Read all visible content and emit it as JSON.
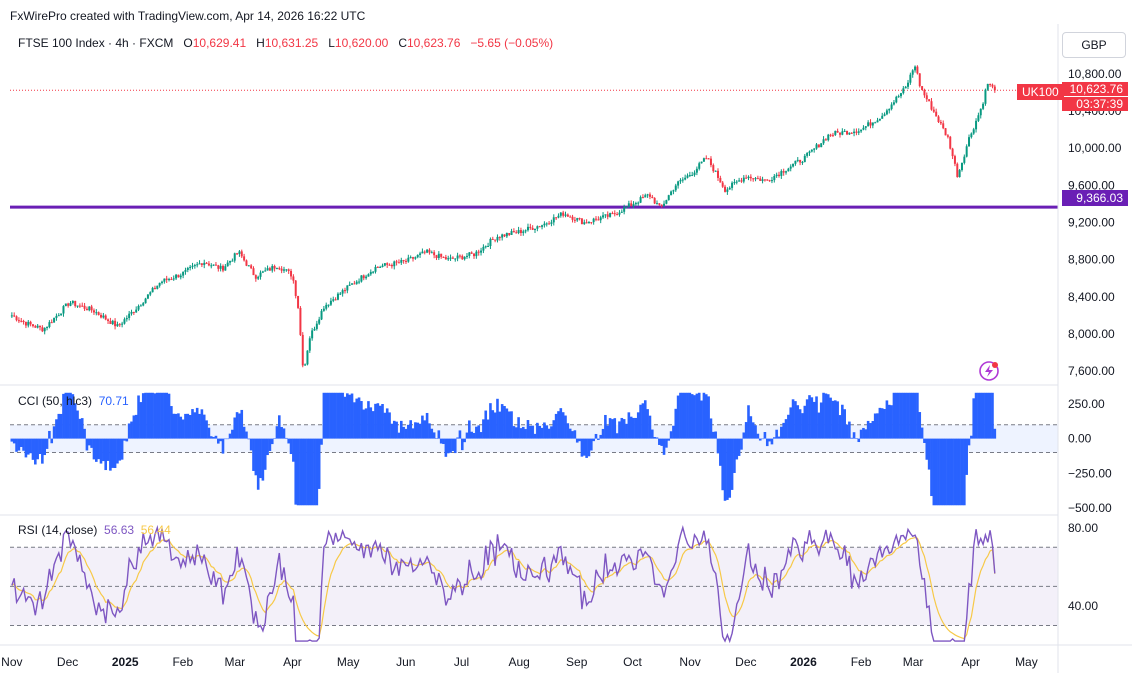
{
  "credit": "FxWirePro created with TradingView.com, Apr 14, 2026 16:22 UTC",
  "currency_button": "GBP",
  "legend": {
    "symbol": "FTSE 100 Index · 4h · FXCM",
    "o_label": "O",
    "o": "10,629.41",
    "h_label": "H",
    "h": "10,631.25",
    "l_label": "L",
    "l": "10,620.00",
    "c_label": "C",
    "c": "10,623.76",
    "change": "−5.65 (−0.05%)"
  },
  "price_badge": {
    "ticker": "UK100",
    "price": "10,623.76",
    "countdown": "03:37:39"
  },
  "level_badge": "9,366.03",
  "cci_legend": {
    "name": "CCI (50, hlc3)",
    "value": "70.71"
  },
  "rsi_legend": {
    "name": "RSI (14, close)",
    "value": "56.63",
    "ma_value": "56.44"
  },
  "colors": {
    "up": "#089981",
    "down": "#f23645",
    "level": "#6a1fb5",
    "cci": "#2962ff",
    "rsi": "#7e57c2",
    "rsi_ma": "#f7c948"
  },
  "chart_data": [
    {
      "type": "candlestick",
      "title": "FTSE 100 Index · 4h · FXCM",
      "x_ticks": [
        "Nov",
        "Dec",
        "2025",
        "Feb",
        "Mar",
        "Apr",
        "May",
        "Jun",
        "Jul",
        "Aug",
        "Sep",
        "Oct",
        "Nov",
        "Dec",
        "2026",
        "Feb",
        "Mar",
        "Apr",
        "May"
      ],
      "y_ticks": [
        7600,
        8000,
        8400,
        8800,
        9200,
        9600,
        10000,
        10400,
        10800
      ],
      "y_tick_labels": [
        "7,600.00",
        "8,000.00",
        "8,400.00",
        "8,800.00",
        "9,200.00",
        "9,600.00",
        "10,000.00",
        "10,400.00",
        "10,800.00"
      ],
      "ylim": [
        7450,
        10950
      ],
      "horizontal_line": 9366.03,
      "last_price": 10623.76,
      "price_path": [
        [
          "2024-11-01",
          8200
        ],
        [
          "2024-11-08",
          8120
        ],
        [
          "2024-11-18",
          8050
        ],
        [
          "2024-12-02",
          8340
        ],
        [
          "2024-12-15",
          8250
        ],
        [
          "2024-12-28",
          8080
        ],
        [
          "2025-01-08",
          8300
        ],
        [
          "2025-01-20",
          8560
        ],
        [
          "2025-02-01",
          8650
        ],
        [
          "2025-02-12",
          8780
        ],
        [
          "2025-02-22",
          8700
        ],
        [
          "2025-03-03",
          8880
        ],
        [
          "2025-03-12",
          8620
        ],
        [
          "2025-03-24",
          8740
        ],
        [
          "2025-04-01",
          8630
        ],
        [
          "2025-04-04",
          8300
        ],
        [
          "2025-04-07",
          7580
        ],
        [
          "2025-04-10",
          7950
        ],
        [
          "2025-04-18",
          8300
        ],
        [
          "2025-05-02",
          8520
        ],
        [
          "2025-05-16",
          8720
        ],
        [
          "2025-06-01",
          8780
        ],
        [
          "2025-06-12",
          8880
        ],
        [
          "2025-06-24",
          8800
        ],
        [
          "2025-07-08",
          8860
        ],
        [
          "2025-07-20",
          9050
        ],
        [
          "2025-08-01",
          9100
        ],
        [
          "2025-08-14",
          9180
        ],
        [
          "2025-08-25",
          9300
        ],
        [
          "2025-09-05",
          9200
        ],
        [
          "2025-09-20",
          9280
        ],
        [
          "2025-10-01",
          9400
        ],
        [
          "2025-10-10",
          9500
        ],
        [
          "2025-10-16",
          9350
        ],
        [
          "2025-10-24",
          9600
        ],
        [
          "2025-11-03",
          9750
        ],
        [
          "2025-11-10",
          9900
        ],
        [
          "2025-11-20",
          9550
        ],
        [
          "2025-12-01",
          9700
        ],
        [
          "2025-12-12",
          9650
        ],
        [
          "2026-01-02",
          9900
        ],
        [
          "2026-01-15",
          10150
        ],
        [
          "2026-02-01",
          10200
        ],
        [
          "2026-02-12",
          10350
        ],
        [
          "2026-02-25",
          10650
        ],
        [
          "2026-03-02",
          10900
        ],
        [
          "2026-03-05",
          10650
        ],
        [
          "2026-03-12",
          10400
        ],
        [
          "2026-03-20",
          10100
        ],
        [
          "2026-03-25",
          9700
        ],
        [
          "2026-03-31",
          10100
        ],
        [
          "2026-04-07",
          10450
        ],
        [
          "2026-04-10",
          10700
        ],
        [
          "2026-04-14",
          10623.76
        ]
      ]
    },
    {
      "type": "histogram",
      "title": "CCI (50, hlc3)",
      "y_ticks": [
        250,
        0,
        -250,
        -500
      ],
      "y_tick_labels": [
        "250.00",
        "0.00",
        "−250.00",
        "−500.00"
      ],
      "bands": [
        100,
        -100
      ],
      "ylim": [
        -550,
        350
      ],
      "last_value": 70.71
    },
    {
      "type": "line",
      "title": "RSI (14, close)",
      "y_ticks": [
        80,
        40
      ],
      "y_tick_labels": [
        "80.00",
        "40.00"
      ],
      "bands": [
        70,
        50,
        30
      ],
      "ylim": [
        20,
        85
      ],
      "last_value": 56.63,
      "ma_last_value": 56.44
    }
  ]
}
